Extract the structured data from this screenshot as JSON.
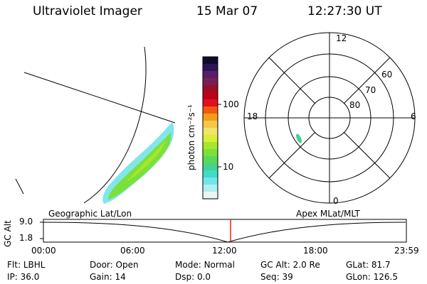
{
  "header": {
    "instrument": "Ultraviolet Imager",
    "date": "15 Mar 07",
    "time": "12:27:30 UT"
  },
  "colorbar": {
    "label": "photon cm⁻²s⁻¹",
    "tick_labels": [
      "100",
      "10"
    ],
    "colors": [
      "#0e0b2e",
      "#2b1652",
      "#5a1e68",
      "#7a1f55",
      "#9a0f28",
      "#c00018",
      "#e31020",
      "#f25a10",
      "#f59d18",
      "#f5c64a",
      "#f0e46a",
      "#d8ee3a",
      "#a8e62a",
      "#7be03a",
      "#5bd85a",
      "#42d490",
      "#40dcc8",
      "#70e6ec",
      "#b0eef0",
      "#e8f6f6"
    ]
  },
  "polar": {
    "mlt_labels": {
      "top": "12",
      "left": "18",
      "right": "6",
      "bottom": "0"
    },
    "lat_labels": [
      "60",
      "70",
      "80"
    ]
  },
  "timeline": {
    "y_axis_label": "GC Alt",
    "y_ticks": [
      "9.0",
      "1.8"
    ],
    "left_caption": "Geographic Lat/Lon",
    "right_caption": "Apex MLat/MLT",
    "x_ticks": [
      "00:00",
      "06:00",
      "12:00",
      "18:00",
      "23:59"
    ],
    "marker_color": "#e02010"
  },
  "info": {
    "row1": [
      {
        "label": "Flt:",
        "value": "LBHL"
      },
      {
        "label": "Door:",
        "value": "Open"
      },
      {
        "label": "Mode:",
        "value": "Normal"
      },
      {
        "label": "GC Alt:",
        "value": "2.0 Re"
      },
      {
        "label": "GLat:",
        "value": "81.7"
      }
    ],
    "row2": [
      {
        "label": "IP:",
        "value": "36.0"
      },
      {
        "label": "Gain:",
        "value": "14"
      },
      {
        "label": "Dsp:",
        "value": "0.0"
      },
      {
        "label": "Seq:",
        "value": "39"
      },
      {
        "label": "GLon:",
        "value": "126.5"
      }
    ]
  }
}
